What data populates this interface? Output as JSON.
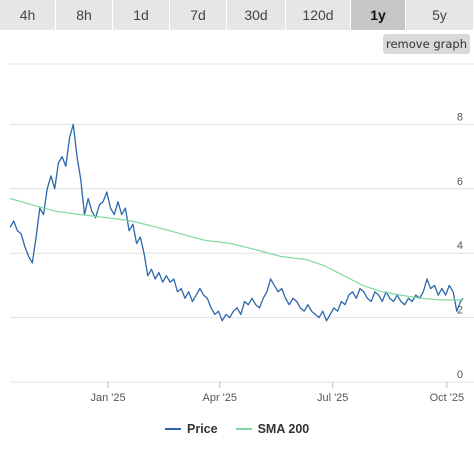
{
  "tabs": [
    {
      "label": "4h",
      "active": false
    },
    {
      "label": "8h",
      "active": false
    },
    {
      "label": "1d",
      "active": false
    },
    {
      "label": "7d",
      "active": false
    },
    {
      "label": "30d",
      "active": false
    },
    {
      "label": "120d",
      "active": false
    },
    {
      "label": "1y",
      "active": true
    },
    {
      "label": "5y",
      "active": false
    }
  ],
  "controls": {
    "remove_graph_label": "remove graph"
  },
  "colors": {
    "price": "#2a67ab",
    "sma": "#7fd9a0",
    "grid": "#e0e0e0",
    "tick": "#555555"
  },
  "chart_data": {
    "type": "line",
    "title": "",
    "xlabel": "",
    "ylabel": "",
    "x_range": [
      "2024-10-14",
      "2025-10-14"
    ],
    "ylim": [
      0,
      10
    ],
    "y_ticks": [
      0,
      2,
      4,
      6,
      8
    ],
    "x_ticks": [
      {
        "date": "2025-01-01",
        "label": "Jan '25"
      },
      {
        "date": "2025-04-01",
        "label": "Apr '25"
      },
      {
        "date": "2025-07-01",
        "label": "Jul '25"
      },
      {
        "date": "2025-10-01",
        "label": "Oct '25"
      }
    ],
    "grid": true,
    "legend_position": "bottom-center",
    "series": [
      {
        "name": "Price",
        "points": [
          [
            "2024-10-14",
            4.8
          ],
          [
            "2024-10-17",
            5.0
          ],
          [
            "2024-10-20",
            4.7
          ],
          [
            "2024-10-23",
            4.6
          ],
          [
            "2024-10-26",
            4.2
          ],
          [
            "2024-10-29",
            3.9
          ],
          [
            "2024-11-01",
            3.7
          ],
          [
            "2024-11-04",
            4.5
          ],
          [
            "2024-11-07",
            5.4
          ],
          [
            "2024-11-10",
            5.2
          ],
          [
            "2024-11-13",
            6.0
          ],
          [
            "2024-11-16",
            6.4
          ],
          [
            "2024-11-19",
            6.0
          ],
          [
            "2024-11-22",
            6.8
          ],
          [
            "2024-11-25",
            7.0
          ],
          [
            "2024-11-28",
            6.7
          ],
          [
            "2024-12-01",
            7.6
          ],
          [
            "2024-12-04",
            8.0
          ],
          [
            "2024-12-07",
            7.0
          ],
          [
            "2024-12-10",
            6.3
          ],
          [
            "2024-12-13",
            5.2
          ],
          [
            "2024-12-16",
            5.7
          ],
          [
            "2024-12-19",
            5.3
          ],
          [
            "2024-12-22",
            5.1
          ],
          [
            "2024-12-25",
            5.5
          ],
          [
            "2024-12-28",
            5.6
          ],
          [
            "2024-12-31",
            5.9
          ],
          [
            "2025-01-03",
            5.4
          ],
          [
            "2025-01-06",
            5.2
          ],
          [
            "2025-01-09",
            5.6
          ],
          [
            "2025-01-12",
            5.2
          ],
          [
            "2025-01-15",
            5.4
          ],
          [
            "2025-01-18",
            4.7
          ],
          [
            "2025-01-21",
            4.9
          ],
          [
            "2025-01-24",
            4.3
          ],
          [
            "2025-01-27",
            4.5
          ],
          [
            "2025-01-30",
            4.0
          ],
          [
            "2025-02-02",
            3.3
          ],
          [
            "2025-02-05",
            3.5
          ],
          [
            "2025-02-08",
            3.2
          ],
          [
            "2025-02-11",
            3.4
          ],
          [
            "2025-02-14",
            3.1
          ],
          [
            "2025-02-17",
            3.3
          ],
          [
            "2025-02-20",
            3.1
          ],
          [
            "2025-02-23",
            3.2
          ],
          [
            "2025-02-26",
            2.8
          ],
          [
            "2025-03-01",
            2.9
          ],
          [
            "2025-03-04",
            2.6
          ],
          [
            "2025-03-07",
            2.8
          ],
          [
            "2025-03-10",
            2.5
          ],
          [
            "2025-03-13",
            2.7
          ],
          [
            "2025-03-16",
            2.9
          ],
          [
            "2025-03-19",
            2.7
          ],
          [
            "2025-03-22",
            2.6
          ],
          [
            "2025-03-25",
            2.3
          ],
          [
            "2025-03-28",
            2.1
          ],
          [
            "2025-03-31",
            2.2
          ],
          [
            "2025-04-03",
            1.9
          ],
          [
            "2025-04-06",
            2.1
          ],
          [
            "2025-04-09",
            2.0
          ],
          [
            "2025-04-12",
            2.2
          ],
          [
            "2025-04-15",
            2.3
          ],
          [
            "2025-04-18",
            2.1
          ],
          [
            "2025-04-21",
            2.5
          ],
          [
            "2025-04-24",
            2.4
          ],
          [
            "2025-04-27",
            2.6
          ],
          [
            "2025-04-30",
            2.4
          ],
          [
            "2025-05-03",
            2.3
          ],
          [
            "2025-05-06",
            2.6
          ],
          [
            "2025-05-09",
            2.8
          ],
          [
            "2025-05-12",
            3.2
          ],
          [
            "2025-05-15",
            3.0
          ],
          [
            "2025-05-18",
            2.8
          ],
          [
            "2025-05-21",
            2.9
          ],
          [
            "2025-05-24",
            2.6
          ],
          [
            "2025-05-27",
            2.4
          ],
          [
            "2025-05-30",
            2.6
          ],
          [
            "2025-06-02",
            2.5
          ],
          [
            "2025-06-05",
            2.3
          ],
          [
            "2025-06-08",
            2.2
          ],
          [
            "2025-06-11",
            2.4
          ],
          [
            "2025-06-14",
            2.2
          ],
          [
            "2025-06-17",
            2.1
          ],
          [
            "2025-06-20",
            2.0
          ],
          [
            "2025-06-23",
            2.2
          ],
          [
            "2025-06-26",
            1.9
          ],
          [
            "2025-06-29",
            2.1
          ],
          [
            "2025-07-02",
            2.3
          ],
          [
            "2025-07-05",
            2.2
          ],
          [
            "2025-07-08",
            2.5
          ],
          [
            "2025-07-11",
            2.4
          ],
          [
            "2025-07-14",
            2.7
          ],
          [
            "2025-07-17",
            2.8
          ],
          [
            "2025-07-20",
            2.6
          ],
          [
            "2025-07-23",
            2.9
          ],
          [
            "2025-07-26",
            2.8
          ],
          [
            "2025-07-29",
            2.6
          ],
          [
            "2025-08-01",
            2.5
          ],
          [
            "2025-08-04",
            2.8
          ],
          [
            "2025-08-07",
            2.7
          ],
          [
            "2025-08-10",
            2.5
          ],
          [
            "2025-08-13",
            2.8
          ],
          [
            "2025-08-16",
            2.6
          ],
          [
            "2025-08-19",
            2.5
          ],
          [
            "2025-08-22",
            2.7
          ],
          [
            "2025-08-25",
            2.5
          ],
          [
            "2025-08-28",
            2.4
          ],
          [
            "2025-08-31",
            2.6
          ],
          [
            "2025-09-03",
            2.5
          ],
          [
            "2025-09-06",
            2.7
          ],
          [
            "2025-09-09",
            2.6
          ],
          [
            "2025-09-12",
            2.8
          ],
          [
            "2025-09-15",
            3.2
          ],
          [
            "2025-09-18",
            2.9
          ],
          [
            "2025-09-21",
            3.0
          ],
          [
            "2025-09-24",
            2.7
          ],
          [
            "2025-09-27",
            2.9
          ],
          [
            "2025-09-30",
            2.7
          ],
          [
            "2025-10-03",
            3.0
          ],
          [
            "2025-10-06",
            2.8
          ],
          [
            "2025-10-09",
            2.2
          ],
          [
            "2025-10-12",
            2.5
          ],
          [
            "2025-10-14",
            2.6
          ]
        ]
      },
      {
        "name": "SMA 200",
        "points": [
          [
            "2024-10-14",
            5.7
          ],
          [
            "2024-11-01",
            5.5
          ],
          [
            "2024-11-20",
            5.3
          ],
          [
            "2024-12-10",
            5.2
          ],
          [
            "2025-01-01",
            5.1
          ],
          [
            "2025-01-20",
            5.0
          ],
          [
            "2025-02-10",
            4.8
          ],
          [
            "2025-03-01",
            4.6
          ],
          [
            "2025-03-20",
            4.4
          ],
          [
            "2025-04-10",
            4.3
          ],
          [
            "2025-05-01",
            4.1
          ],
          [
            "2025-05-20",
            3.9
          ],
          [
            "2025-06-10",
            3.8
          ],
          [
            "2025-06-25",
            3.6
          ],
          [
            "2025-07-10",
            3.3
          ],
          [
            "2025-07-25",
            3.0
          ],
          [
            "2025-08-10",
            2.8
          ],
          [
            "2025-08-25",
            2.7
          ],
          [
            "2025-09-10",
            2.6
          ],
          [
            "2025-09-25",
            2.55
          ],
          [
            "2025-10-14",
            2.55
          ]
        ]
      }
    ]
  }
}
